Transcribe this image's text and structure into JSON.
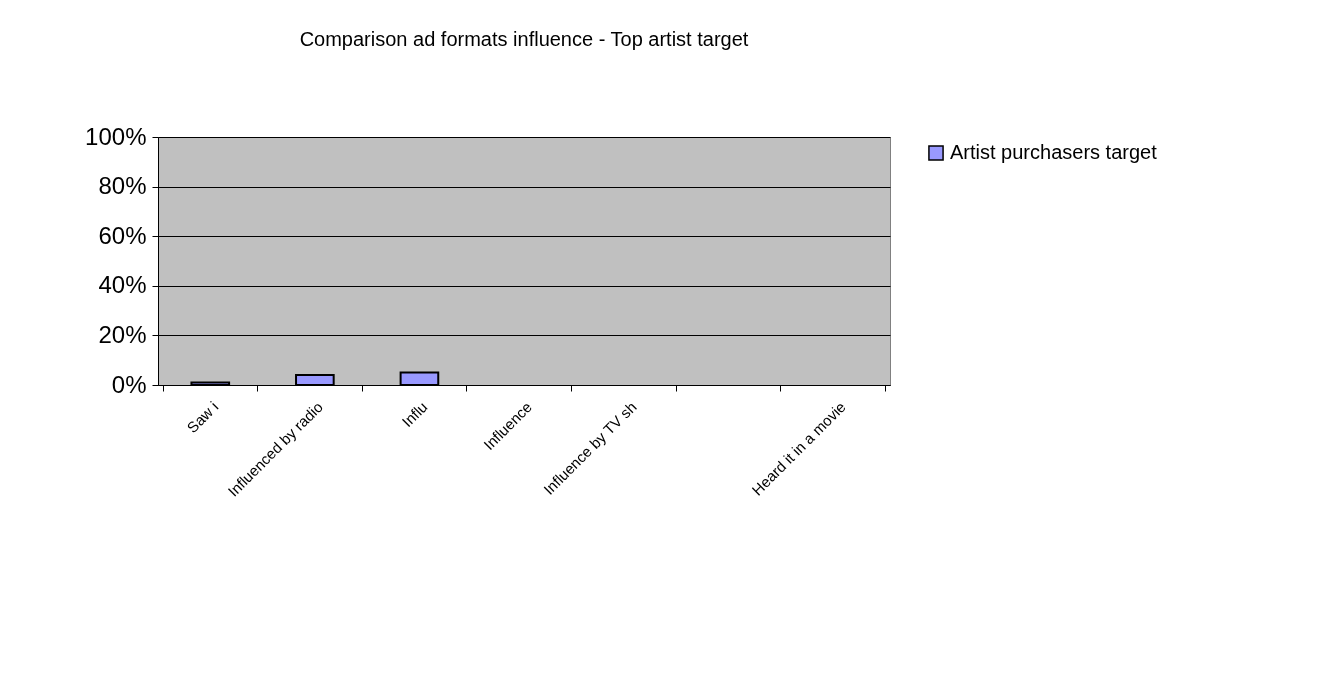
{
  "chart_data": {
    "type": "bar",
    "title": "Comparison ad formats influence - Top artist target",
    "categories": [
      "Saw i",
      "Influenced by radio",
      "Influ",
      "Influence",
      "Influence by TV sh",
      null,
      "Heard it in a movie"
    ],
    "series": [
      {
        "name": "Artist purchasers target",
        "color": "#9999ff",
        "values": [
          1,
          4,
          5,
          0,
          0,
          0,
          0
        ]
      }
    ],
    "ylim": [
      0,
      100
    ],
    "yticks": [
      {
        "value": 0,
        "label": "0%"
      },
      {
        "value": 20,
        "label": "20%"
      },
      {
        "value": 40,
        "label": "40%"
      },
      {
        "value": 60,
        "label": "60%"
      },
      {
        "value": 80,
        "label": "80%"
      },
      {
        "value": 100,
        "label": "100%"
      }
    ],
    "grid": "y",
    "legend": "right"
  }
}
